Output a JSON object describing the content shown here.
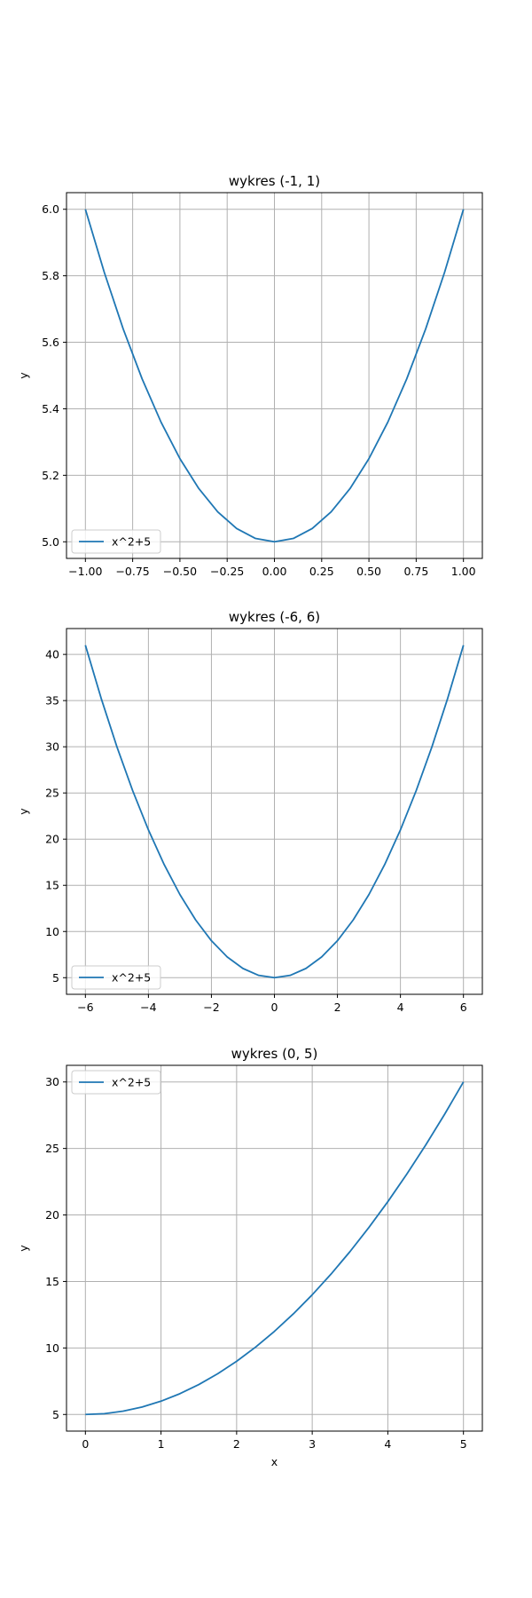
{
  "chart_data": [
    {
      "type": "line",
      "title": "wykres (-1, 1)",
      "xlabel": "",
      "ylabel": "y",
      "xlim": [
        -1.1,
        1.1
      ],
      "ylim": [
        4.95,
        6.05
      ],
      "xticks": [
        -1.0,
        -0.75,
        -0.5,
        -0.25,
        0.0,
        0.25,
        0.5,
        0.75,
        1.0
      ],
      "xtick_labels": [
        "−1.00",
        "−0.75",
        "−0.50",
        "−0.25",
        "0.00",
        "0.25",
        "0.50",
        "0.75",
        "1.00"
      ],
      "yticks": [
        5.0,
        5.2,
        5.4,
        5.6,
        5.8,
        6.0
      ],
      "ytick_labels": [
        "5.0",
        "5.2",
        "5.4",
        "5.6",
        "5.8",
        "6.0"
      ],
      "grid": true,
      "legend_position": "lower-left",
      "series": [
        {
          "name": "x^2+5",
          "color": "#1f77b4",
          "x": [
            -1.0,
            -0.9,
            -0.8,
            -0.7,
            -0.6,
            -0.5,
            -0.4,
            -0.3,
            -0.2,
            -0.1,
            0.0,
            0.1,
            0.2,
            0.3,
            0.4,
            0.5,
            0.6,
            0.7,
            0.8,
            0.9,
            1.0
          ],
          "y": [
            6.0,
            5.81,
            5.64,
            5.49,
            5.36,
            5.25,
            5.16,
            5.09,
            5.04,
            5.01,
            5.0,
            5.01,
            5.04,
            5.09,
            5.16,
            5.25,
            5.36,
            5.49,
            5.64,
            5.81,
            6.0
          ]
        }
      ]
    },
    {
      "type": "line",
      "title": "wykres (-6, 6)",
      "xlabel": "",
      "ylabel": "y",
      "xlim": [
        -6.6,
        6.6
      ],
      "ylim": [
        3.2,
        42.8
      ],
      "xticks": [
        -6,
        -4,
        -2,
        0,
        2,
        4,
        6
      ],
      "xtick_labels": [
        "−6",
        "−4",
        "−2",
        "0",
        "2",
        "4",
        "6"
      ],
      "yticks": [
        5,
        10,
        15,
        20,
        25,
        30,
        35,
        40
      ],
      "ytick_labels": [
        "5",
        "10",
        "15",
        "20",
        "25",
        "30",
        "35",
        "40"
      ],
      "grid": true,
      "legend_position": "lower-left",
      "series": [
        {
          "name": "x^2+5",
          "color": "#1f77b4",
          "x": [
            -6,
            -5.5,
            -5,
            -4.5,
            -4,
            -3.5,
            -3,
            -2.5,
            -2,
            -1.5,
            -1,
            -0.5,
            0,
            0.5,
            1,
            1.5,
            2,
            2.5,
            3,
            3.5,
            4,
            4.5,
            5,
            5.5,
            6
          ],
          "y": [
            41,
            35.25,
            30,
            25.25,
            21,
            17.25,
            14,
            11.25,
            9,
            7.25,
            6,
            5.25,
            5,
            5.25,
            6,
            7.25,
            9,
            11.25,
            14,
            17.25,
            21,
            25.25,
            30,
            35.25,
            41
          ]
        }
      ]
    },
    {
      "type": "line",
      "title": "wykres (0, 5)",
      "xlabel": "x",
      "ylabel": "y",
      "xlim": [
        -0.25,
        5.25
      ],
      "ylim": [
        3.75,
        31.25
      ],
      "xticks": [
        0,
        1,
        2,
        3,
        4,
        5
      ],
      "xtick_labels": [
        "0",
        "1",
        "2",
        "3",
        "4",
        "5"
      ],
      "yticks": [
        5,
        10,
        15,
        20,
        25,
        30
      ],
      "ytick_labels": [
        "5",
        "10",
        "15",
        "20",
        "25",
        "30"
      ],
      "grid": true,
      "legend_position": "upper-left",
      "series": [
        {
          "name": "x^2+5",
          "color": "#1f77b4",
          "x": [
            0,
            0.25,
            0.5,
            0.75,
            1,
            1.25,
            1.5,
            1.75,
            2,
            2.25,
            2.5,
            2.75,
            3,
            3.25,
            3.5,
            3.75,
            4,
            4.25,
            4.5,
            4.75,
            5
          ],
          "y": [
            5,
            5.0625,
            5.25,
            5.5625,
            6,
            6.5625,
            7.25,
            8.0625,
            9,
            10.0625,
            11.25,
            12.5625,
            14,
            15.5625,
            17.25,
            19.0625,
            21,
            23.0625,
            25.25,
            27.5625,
            30
          ]
        }
      ]
    }
  ]
}
